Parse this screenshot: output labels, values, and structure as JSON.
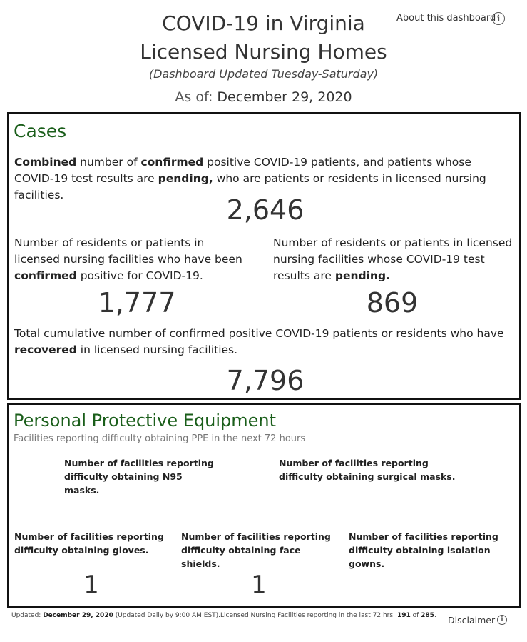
{
  "header": {
    "title_line1": "COVID-19 in Virginia",
    "title_line2": "Licensed Nursing Homes",
    "subtitle": "(Dashboard Updated Tuesday-Saturday)",
    "as_of_label": "As of:",
    "as_of_date": "December 29, 2020",
    "about_link": "About this dashboard",
    "about_icon": "info-icon"
  },
  "cases": {
    "title": "Cases",
    "combined_desc": {
      "w1": "Combined",
      "t1": " number of ",
      "w2": "confirmed",
      "t2": " positive COVID-19 patients, and patients whose COVID-19 test results are ",
      "w3": "pending,",
      "t3": " who are patients or residents in licensed nursing facilities."
    },
    "combined_value": "2,646",
    "confirmed_desc": {
      "t1": "Number of residents or patients in licensed nursing facilities who have been ",
      "w1": "confirmed",
      "t2": " positive for COVID-19."
    },
    "confirmed_value": "1,777",
    "pending_desc": {
      "t1": "Number of residents or patients in licensed nursing facilities whose COVID-19 test results are ",
      "w1": "pending."
    },
    "pending_value": "869",
    "recovered_desc": {
      "t1": "Total cumulative number of confirmed positive COVID-19 patients or residents who have ",
      "w1": "recovered",
      "t2": " in licensed nursing facilities."
    },
    "recovered_value": "7,796"
  },
  "ppe": {
    "title": "Personal Protective Equipment",
    "subtitle": "Facilities reporting difficulty obtaining PPE in the next 72 hours",
    "n95_label": "Number of facilities reporting difficulty obtaining N95 masks.",
    "surgical_label": "Number of facilities reporting difficulty obtaining surgical masks.",
    "gloves_label": "Number of facilities reporting difficulty obtaining gloves.",
    "gloves_value": "1",
    "shields_label": "Number of facilities reporting difficulty obtaining face shields.",
    "shields_value": "1",
    "gowns_label": "Number of facilities reporting difficulty obtaining isolation gowns."
  },
  "footer": {
    "updated_label": "Updated: ",
    "updated_date": "December 29, 2020",
    "note": " (Updated Daily by 9:00 AM EST).Licensed Nursing Facilities reporting in the last 72 hrs: ",
    "reporting": "191",
    "of": " of ",
    "total": "285",
    "end": ".",
    "disclaimer": "Disclaimer",
    "disclaimer_icon": "info-icon"
  }
}
